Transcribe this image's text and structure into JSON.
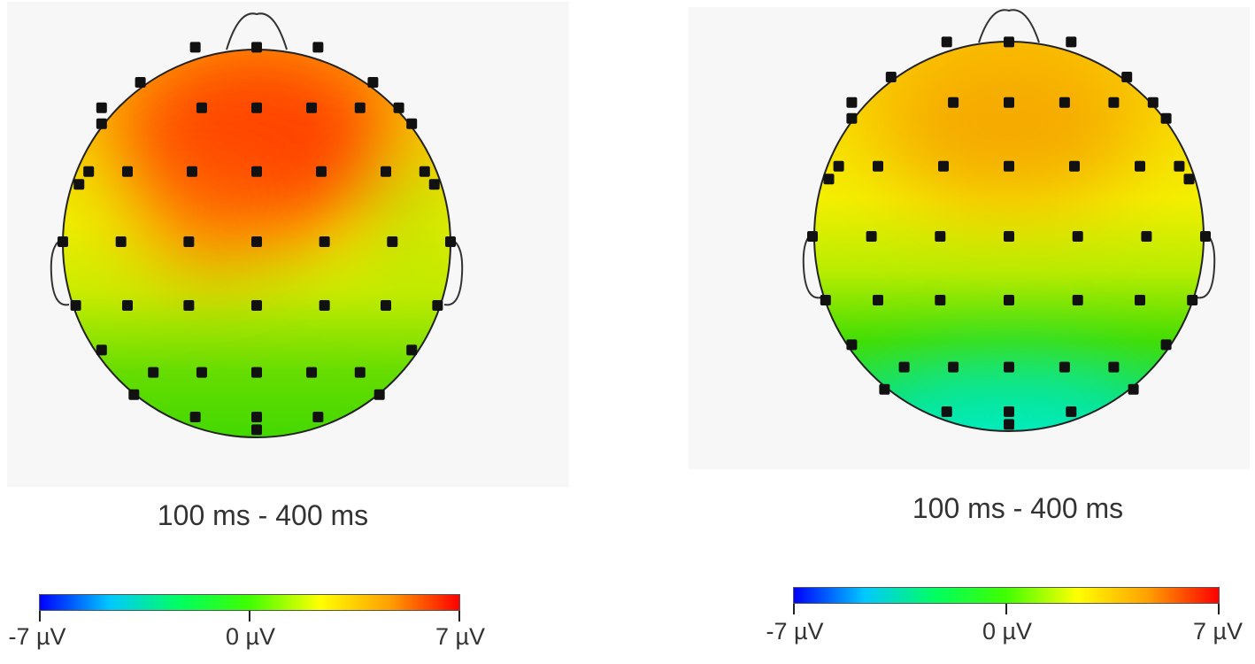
{
  "maps": [
    {
      "id": "left",
      "caption": "100 ms - 400 ms",
      "colorbar": {
        "min_label": "-7 µV",
        "mid_label": "0 µV",
        "max_label": "7 µV"
      },
      "palette": {
        "hot": "#ff3a00",
        "warm": "#ffb000",
        "neutral": "#ffff00",
        "green": "#44dd00"
      }
    },
    {
      "id": "right",
      "caption": "100 ms - 400 ms",
      "colorbar": {
        "min_label": "-7 µV",
        "mid_label": "0 µV",
        "max_label": "7 µV"
      },
      "palette": {
        "hot": "#f5a800",
        "warm": "#ffd400",
        "green": "#44dd00",
        "cool": "#00e8c8"
      }
    }
  ],
  "colorbar_colors": [
    "#0000ff",
    "#00c8ff",
    "#00ff60",
    "#40ff00",
    "#ffff00",
    "#ffa000",
    "#ff0000"
  ]
}
